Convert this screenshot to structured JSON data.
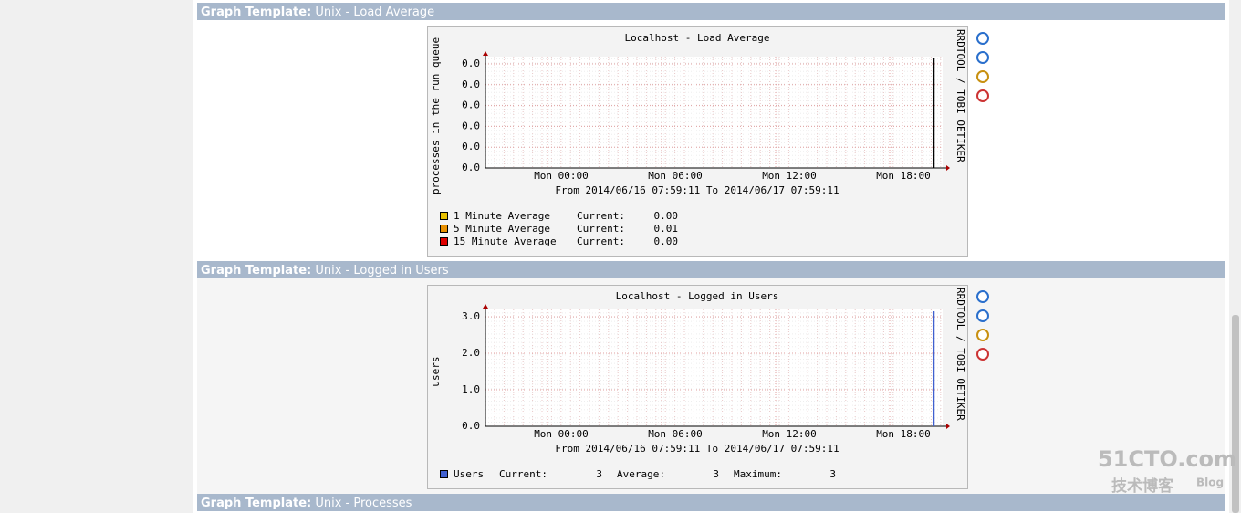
{
  "sections": [
    {
      "header_label": "Graph Template:",
      "header_value": "Unix - Load Average",
      "graph": {
        "title": "Localhost - Load Average",
        "ylabel": "processes in the run queue",
        "yticks": [
          "0.0",
          "0.0",
          "0.0",
          "0.0",
          "0.0",
          "0.0"
        ],
        "xticks": [
          "Mon 00:00",
          "Mon 06:00",
          "Mon 12:00",
          "Mon 18:00"
        ],
        "range": "From 2014/06/16 07:59:11 To 2014/06/17 07:59:11",
        "legend": [
          {
            "color": "#e8c000",
            "cells": [
              "1 Minute Average",
              "Current:",
              "0.00"
            ]
          },
          {
            "color": "#e89000",
            "cells": [
              "5 Minute Average",
              "Current:",
              "0.01"
            ]
          },
          {
            "color": "#e00000",
            "cells": [
              "15 Minute Average",
              "Current:",
              "0.00"
            ]
          }
        ]
      }
    },
    {
      "header_label": "Graph Template:",
      "header_value": "Unix - Logged in Users",
      "graph": {
        "title": "Localhost - Logged in Users",
        "ylabel": "users",
        "yticks": [
          "0.0",
          "1.0",
          "2.0",
          "3.0"
        ],
        "xticks": [
          "Mon 00:00",
          "Mon 06:00",
          "Mon 12:00",
          "Mon 18:00"
        ],
        "range": "From 2014/06/16 07:59:11 To 2014/06/17 07:59:11",
        "legend": [
          {
            "color": "#4060d0",
            "cells": [
              "Users",
              "Current:",
              "3",
              "Average:",
              "3",
              "Maximum:",
              "3"
            ]
          }
        ]
      }
    },
    {
      "header_label": "Graph Template:",
      "header_value": "Unix - Processes"
    }
  ],
  "rrd_credit": "RRDTOOL / TOBI OETIKER",
  "watermark": {
    "brand": "51CTO.com",
    "sub": "技术博客",
    "blog": "Blog"
  }
}
